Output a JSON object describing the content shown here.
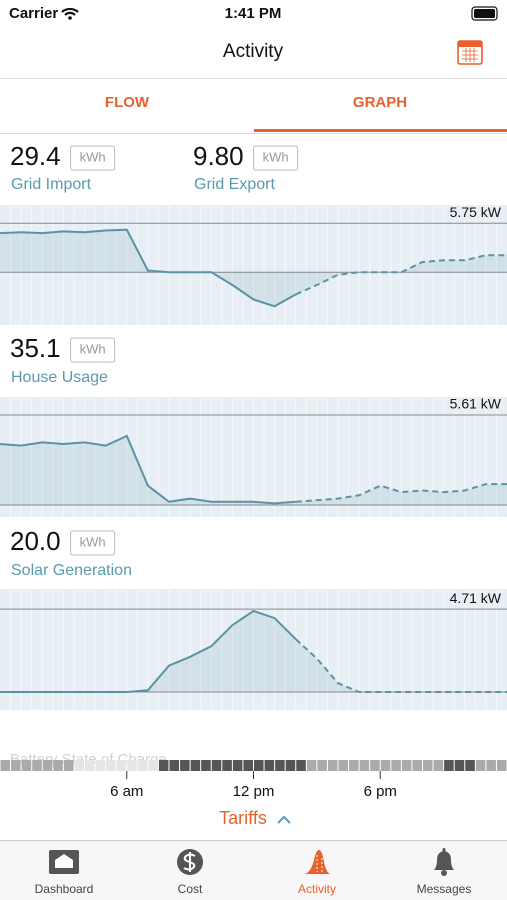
{
  "status_bar": {
    "carrier": "Carrier",
    "time": "1:41 PM"
  },
  "header": {
    "title": "Activity"
  },
  "tabs": [
    "FLOW",
    "GRAPH"
  ],
  "panels": [
    {
      "metrics": [
        {
          "value": "29.4",
          "unit": "kWh",
          "label": "Grid Import"
        },
        {
          "value": "9.80",
          "unit": "kWh",
          "label": "Grid Export"
        }
      ],
      "chart": {
        "type": "line",
        "x": [
          0,
          1,
          2,
          3,
          4,
          5,
          6,
          7,
          8,
          9,
          10,
          11,
          12,
          13,
          14,
          15,
          16,
          17,
          18,
          19,
          20,
          21,
          22,
          23,
          24
        ],
        "values": [
          4.6,
          4.7,
          4.6,
          4.8,
          4.7,
          4.9,
          5.0,
          0.2,
          0,
          0,
          0,
          -1.5,
          -3.2,
          -4.0,
          -2.6,
          null,
          null,
          null,
          null,
          null,
          null,
          null,
          null,
          null,
          null
        ],
        "forecast": [
          null,
          null,
          null,
          null,
          null,
          null,
          null,
          null,
          null,
          null,
          null,
          null,
          null,
          null,
          -2.6,
          -1.5,
          -0.3,
          0,
          0,
          0,
          1.2,
          1.4,
          1.4,
          2.0,
          2.0
        ],
        "ylim": [
          -6.2,
          7.9
        ],
        "yticks": [
          {
            "value": 5.75,
            "label": "5.75 kW"
          }
        ],
        "color": "#5b93a3"
      }
    },
    {
      "metrics": [
        {
          "value": "35.1",
          "unit": "kWh",
          "label": "House Usage"
        }
      ],
      "chart": {
        "type": "line",
        "x": [
          0,
          1,
          2,
          3,
          4,
          5,
          6,
          7,
          8,
          9,
          10,
          11,
          12,
          13,
          14,
          15,
          16,
          17,
          18,
          19,
          20,
          21,
          22,
          23,
          24
        ],
        "values": [
          3.8,
          3.7,
          3.9,
          3.8,
          3.9,
          3.7,
          4.3,
          1.2,
          0.2,
          0.4,
          0.2,
          0.2,
          0.2,
          0.1,
          0.2,
          null,
          null,
          null,
          null,
          null,
          null,
          null,
          null,
          null,
          null
        ],
        "forecast": [
          null,
          null,
          null,
          null,
          null,
          null,
          null,
          null,
          null,
          null,
          null,
          null,
          null,
          null,
          0.2,
          0.3,
          0.4,
          0.6,
          1.2,
          0.8,
          0.9,
          0.8,
          0.9,
          1.3,
          1.3
        ],
        "ylim": [
          -0.75,
          6.73
        ],
        "yticks": [
          {
            "value": 5.61,
            "label": "5.61 kW"
          }
        ],
        "color": "#5b93a3"
      }
    },
    {
      "metrics": [
        {
          "value": "20.0",
          "unit": "kWh",
          "label": "Solar Generation"
        }
      ],
      "chart": {
        "type": "line",
        "x": [
          0,
          1,
          2,
          3,
          4,
          5,
          6,
          7,
          8,
          9,
          10,
          11,
          12,
          13,
          14,
          15,
          16,
          17,
          18,
          19,
          20,
          21,
          22,
          23,
          24
        ],
        "values": [
          0,
          0,
          0,
          0,
          0,
          0,
          0,
          0.1,
          1.5,
          2.0,
          2.6,
          3.8,
          4.6,
          4.2,
          3.0,
          null,
          null,
          null,
          null,
          null,
          null,
          null,
          null,
          null,
          null
        ],
        "forecast": [
          null,
          null,
          null,
          null,
          null,
          null,
          null,
          null,
          null,
          null,
          null,
          null,
          null,
          null,
          3.0,
          1.9,
          0.5,
          0,
          0,
          0,
          0,
          0,
          0,
          0,
          0
        ],
        "ylim": [
          -1.02,
          5.85
        ],
        "yticks": [
          {
            "value": 4.71,
            "label": "4.71 kW"
          }
        ],
        "color": "#5b93a3"
      }
    }
  ],
  "battery_label": "Battery State of Charge",
  "time_axis": {
    "xlim": [
      0,
      24
    ],
    "xticks": [
      {
        "value": 6,
        "label": "6 am"
      },
      {
        "value": 12,
        "label": "12 pm"
      },
      {
        "value": 18,
        "label": "6 pm"
      }
    ]
  },
  "tariffs": "Tariffs",
  "tab_bar": [
    "Dashboard",
    "Cost",
    "Activity",
    "Messages"
  ]
}
